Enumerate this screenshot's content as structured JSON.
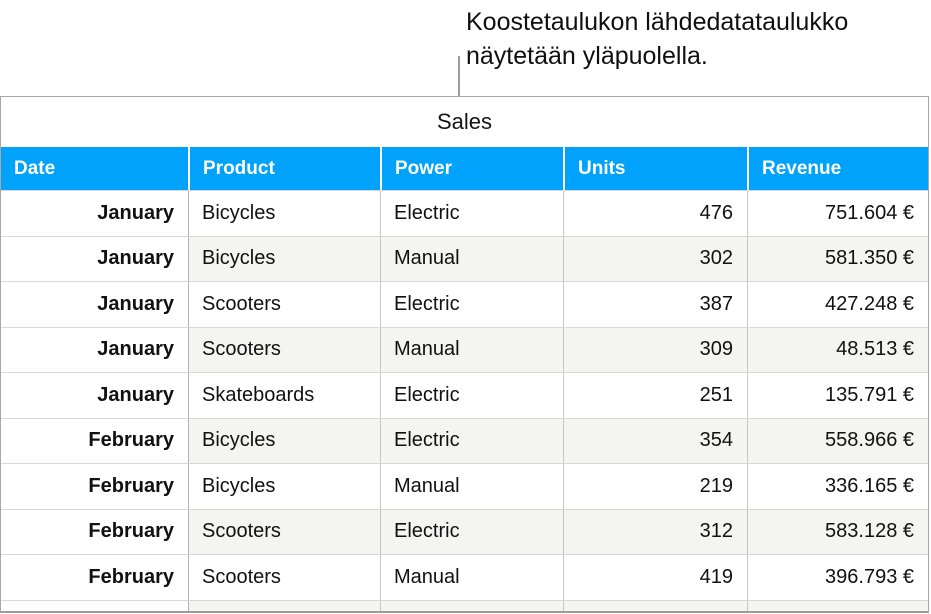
{
  "callout": {
    "line1": "Koostetaulukon lähdedatataulukko",
    "line2": "näytetään yläpuolella."
  },
  "table": {
    "title": "Sales",
    "columns": [
      "Date",
      "Product",
      "Power",
      "Units",
      "Revenue"
    ],
    "rows": [
      [
        "January",
        "Bicycles",
        "Electric",
        "476",
        "751.604 €"
      ],
      [
        "January",
        "Bicycles",
        "Manual",
        "302",
        "581.350 €"
      ],
      [
        "January",
        "Scooters",
        "Electric",
        "387",
        "427.248 €"
      ],
      [
        "January",
        "Scooters",
        "Manual",
        "309",
        "48.513 €"
      ],
      [
        "January",
        "Skateboards",
        "Electric",
        "251",
        "135.791 €"
      ],
      [
        "February",
        "Bicycles",
        "Electric",
        "354",
        "558.966 €"
      ],
      [
        "February",
        "Bicycles",
        "Manual",
        "219",
        "336.165 €"
      ],
      [
        "February",
        "Scooters",
        "Electric",
        "312",
        "583.128 €"
      ],
      [
        "February",
        "Scooters",
        "Manual",
        "419",
        "396.793 €"
      ]
    ],
    "colors": {
      "header_bg": "#00a2fc",
      "alt_row": "#f4f4f1"
    }
  }
}
